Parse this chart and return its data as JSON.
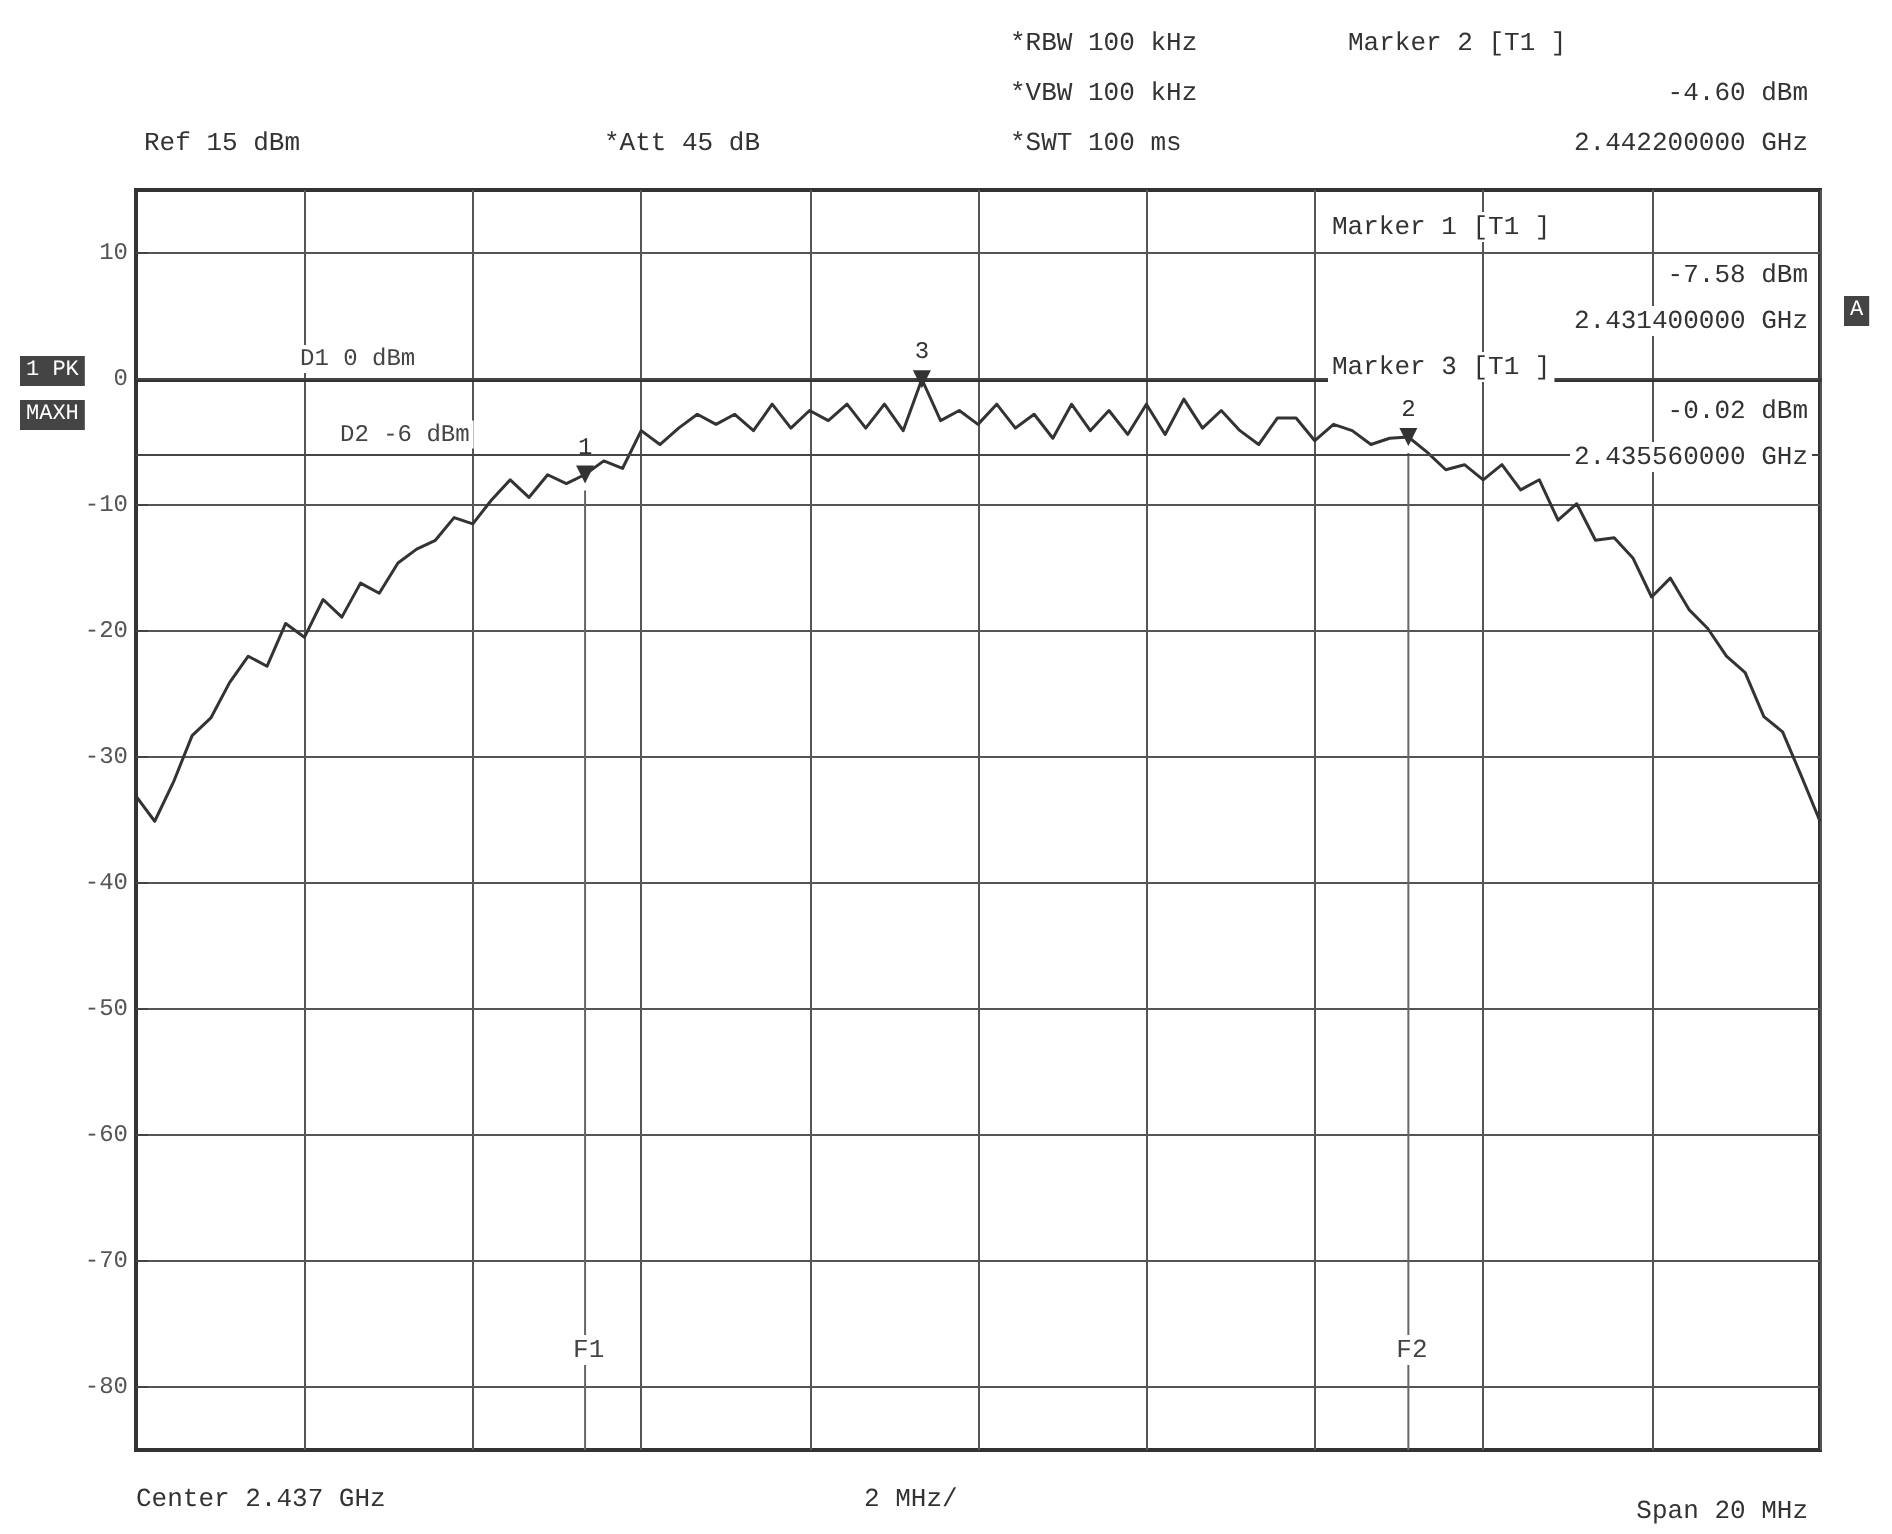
{
  "chart_data": {
    "type": "line",
    "categories": [
      null,
      null,
      null,
      null,
      null,
      null,
      null,
      null,
      null,
      null,
      null,
      null,
      null,
      null,
      null,
      null,
      null,
      null,
      null,
      null,
      null,
      null,
      null,
      null,
      null,
      null,
      null,
      null,
      null,
      null,
      null,
      null,
      null,
      null,
      null,
      null,
      null,
      null,
      null,
      null,
      null,
      null,
      null,
      null,
      null,
      null,
      null,
      null,
      null,
      null,
      null,
      null,
      null,
      null,
      null,
      null,
      null,
      null,
      null,
      null,
      null,
      null,
      null,
      null,
      null,
      null,
      null,
      null,
      null,
      null,
      null,
      null,
      null,
      null,
      null,
      null,
      null,
      null,
      null,
      null,
      null,
      null,
      null,
      null,
      null,
      null,
      null,
      null,
      null,
      null,
      null
    ],
    "series": [
      {
        "color": "#333333",
        "values": [
          -33.1,
          -35.1,
          -32,
          -28.3,
          -26.9,
          -24.1,
          -22,
          -22.8,
          -19.4,
          -20.5,
          -17.5,
          -18.9,
          -16.2,
          -17,
          -14.6,
          -13.5,
          -12.8,
          -11,
          -11.5,
          -9.6,
          -8,
          -9.4,
          -7.6,
          -8.3,
          -7.58,
          -6.5,
          -7.1,
          -4.1,
          -5.2,
          -3.9,
          -2.8,
          -3.6,
          -2.8,
          -4.1,
          -2,
          -3.9,
          -2.5,
          -3.3,
          -2,
          -3.9,
          -2,
          -4.1,
          -0.02,
          -3.3,
          -2.5,
          -3.6,
          -2,
          -3.9,
          -2.8,
          -4.7,
          -2,
          -4.1,
          -2.5,
          -4.4,
          -2,
          -4.4,
          -1.6,
          -3.9,
          -2.5,
          -4.1,
          -5.2,
          -3.1,
          -3.1,
          -4.9,
          -3.6,
          -4.1,
          -5.2,
          -4.7,
          -4.6,
          -5.8,
          -7.2,
          -6.8,
          -8,
          -6.8,
          -8.8,
          -8,
          -11.2,
          -9.9,
          -12.8,
          -12.6,
          -14.2,
          -17.3,
          -15.8,
          -18.3,
          -19.8,
          -22,
          -23.3,
          -26.8,
          -28,
          -31.5,
          -35.1
        ]
      }
    ],
    "ylim": [
      -85,
      15
    ],
    "yticks": [
      10,
      0,
      -10,
      -20,
      -30,
      -40,
      -50,
      -60,
      -70,
      -80
    ],
    "tick_labels": "y",
    "grid": true,
    "marker": "none",
    "ref_lines": [
      {
        "axis": "y",
        "value": 0,
        "label": "D1 0 dBm"
      },
      {
        "axis": "y",
        "value": -6,
        "label": "D2 -6 dBm"
      }
    ],
    "annotations": [
      "Ref 15 dBm",
      "*Att 45 dB",
      "*RBW 100 kHz",
      "*VBW 100 kHz",
      "*SWT 100 ms",
      "Marker 2 [T1 ]",
      "-4.60 dBm",
      "2.442200000 GHz",
      "Marker 1 [T1 ]",
      "-7.58 dBm",
      "2.431400000 GHz",
      "Marker 3 [T1 ]",
      "-0.02 dBm",
      "2.435560000 GHz",
      "1 PK",
      "MAXH",
      "A",
      "Center 2.437 GHz",
      "2 MHz/",
      "Span 20 MHz",
      {
        "text": "1",
        "y": -7.58
      },
      {
        "text": "2",
        "y": -4.6
      },
      {
        "text": "3",
        "y": -0.02
      },
      "F1",
      "F2"
    ]
  }
}
